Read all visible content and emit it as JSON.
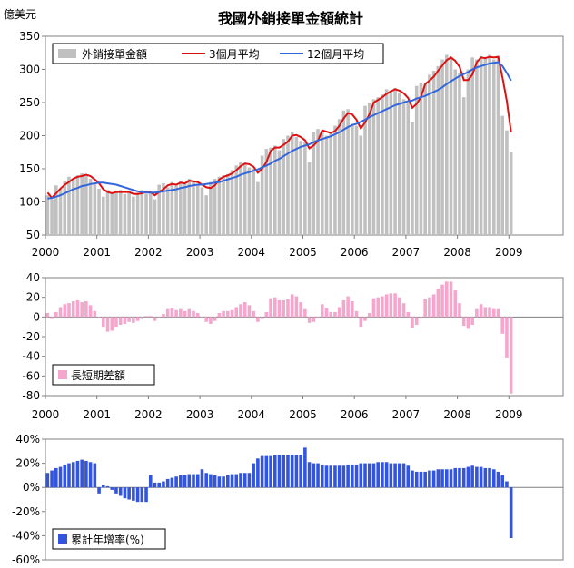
{
  "chart_data": [
    {
      "type": "bar",
      "title": "我國外銷接單金額統計",
      "unit_label": "億美元",
      "ylim": [
        50,
        350
      ],
      "yticks": [
        50,
        100,
        150,
        200,
        250,
        300,
        350
      ],
      "xticks": [
        "2000",
        "2001",
        "2002",
        "2003",
        "2004",
        "2005",
        "2006",
        "2007",
        "2008",
        "2009"
      ],
      "x_start": 2000,
      "colors": {
        "bars": "#c0c0c0",
        "ma3": "#dd1111",
        "ma12": "#3366dd"
      },
      "legend": [
        "外銷接單金額",
        "3個月平均",
        "12個月平均"
      ],
      "series": [
        {
          "name": "外銷接單金額",
          "type": "bar",
          "values": [
            110,
            104,
            125,
            120,
            132,
            138,
            135,
            140,
            143,
            140,
            135,
            128,
            120,
            108,
            118,
            112,
            115,
            118,
            112,
            115,
            108,
            114,
            118,
            112,
            115,
            104,
            126,
            128,
            122,
            130,
            125,
            132,
            128,
            135,
            130,
            125,
            122,
            110,
            130,
            135,
            138,
            140,
            142,
            148,
            155,
            160,
            158,
            152,
            150,
            130,
            170,
            180,
            182,
            185,
            178,
            195,
            200,
            205,
            198,
            192,
            190,
            160,
            205,
            210,
            208,
            200,
            205,
            215,
            225,
            238,
            240,
            218,
            215,
            200,
            245,
            250,
            255,
            258,
            262,
            270,
            268,
            272,
            265,
            255,
            250,
            220,
            275,
            280,
            278,
            292,
            298,
            305,
            315,
            322,
            318,
            300,
            295,
            258,
            300,
            318,
            315,
            320,
            316,
            322,
            315,
            320,
            230,
            208,
            176
          ]
        },
        {
          "name": "3個月平均",
          "type": "line",
          "values": [
            114,
            106,
            113,
            120,
            126,
            130,
            135,
            138,
            139,
            141,
            139,
            134,
            128,
            119,
            115,
            113,
            115,
            115,
            115,
            115,
            112,
            112,
            113,
            115,
            115,
            110,
            115,
            119,
            125,
            127,
            126,
            129,
            128,
            132,
            131,
            130,
            126,
            122,
            121,
            125,
            134,
            138,
            140,
            143,
            148,
            154,
            158,
            157,
            153,
            144,
            150,
            160,
            177,
            182,
            182,
            186,
            191,
            200,
            201,
            198,
            193,
            181,
            185,
            192,
            208,
            206,
            204,
            207,
            215,
            226,
            234,
            232,
            224,
            211,
            220,
            232,
            250,
            254,
            258,
            263,
            267,
            270,
            268,
            264,
            257,
            242,
            248,
            258,
            278,
            283,
            289,
            298,
            306,
            314,
            318,
            313,
            304,
            284,
            284,
            292,
            311,
            318,
            317,
            319,
            318,
            319,
            288,
            253,
            205
          ]
        },
        {
          "name": "12個月平均",
          "type": "line",
          "values": [
            105,
            106,
            108,
            110,
            113,
            116,
            119,
            121,
            124,
            125,
            127,
            128,
            129,
            129,
            128,
            127,
            126,
            124,
            122,
            120,
            118,
            116,
            115,
            114,
            114,
            114,
            115,
            116,
            117,
            118,
            119,
            121,
            122,
            124,
            125,
            126,
            126,
            127,
            128,
            129,
            130,
            132,
            134,
            136,
            138,
            141,
            143,
            145,
            147,
            149,
            152,
            155,
            158,
            162,
            165,
            169,
            173,
            177,
            180,
            183,
            185,
            187,
            190,
            193,
            195,
            197,
            199,
            202,
            205,
            209,
            213,
            216,
            218,
            221,
            224,
            228,
            231,
            234,
            237,
            240,
            243,
            246,
            248,
            250,
            252,
            253,
            256,
            258,
            260,
            263,
            266,
            269,
            273,
            278,
            282,
            286,
            290,
            293,
            296,
            300,
            303,
            305,
            307,
            309,
            310,
            311,
            305,
            295,
            283
          ]
        }
      ]
    },
    {
      "type": "bar",
      "ylim": [
        -80,
        40
      ],
      "yticks": [
        -80,
        -60,
        -40,
        -20,
        0,
        20,
        40
      ],
      "xticks": [
        "2000",
        "2001",
        "2002",
        "2003",
        "2004",
        "2005",
        "2006",
        "2007",
        "2008",
        "2009"
      ],
      "x_start": 2000,
      "colors": {
        "bars": "#f4a6cc"
      },
      "legend": [
        "長短期差額"
      ],
      "series": [
        {
          "name": "長短期差額",
          "type": "bar",
          "values": [
            4,
            -2,
            5,
            10,
            13,
            14,
            16,
            17,
            15,
            16,
            12,
            6,
            -1,
            -10,
            -15,
            -14,
            -10,
            -8,
            -7,
            -5,
            -6,
            -4,
            -2,
            1,
            1,
            -4,
            0,
            3,
            8,
            9,
            7,
            8,
            6,
            8,
            6,
            4,
            0,
            -5,
            -7,
            -4,
            4,
            6,
            6,
            7,
            10,
            13,
            15,
            12,
            6,
            -5,
            -2,
            5,
            19,
            20,
            17,
            17,
            18,
            23,
            21,
            15,
            8,
            -6,
            -5,
            -1,
            13,
            9,
            5,
            5,
            10,
            17,
            21,
            16,
            6,
            -10,
            -4,
            4,
            19,
            20,
            21,
            23,
            24,
            24,
            20,
            14,
            5,
            -11,
            -8,
            0,
            18,
            20,
            23,
            29,
            33,
            36,
            36,
            27,
            14,
            -9,
            -12,
            -8,
            8,
            13,
            10,
            10,
            8,
            8,
            -17,
            -42,
            -78
          ]
        }
      ]
    },
    {
      "type": "bar",
      "ylim": [
        -60,
        40
      ],
      "yticks": [
        "40%",
        "20%",
        "0%",
        "-20%",
        "-40%",
        "-60%"
      ],
      "ytick_values": [
        40,
        20,
        0,
        -20,
        -40,
        -60
      ],
      "xticks": [],
      "x_start": 2000,
      "colors": {
        "bars": "#3355dd"
      },
      "legend": [
        "累計年增率(%)"
      ],
      "series": [
        {
          "name": "累計年增率(%)",
          "type": "bar",
          "values": [
            12,
            14,
            16,
            17,
            19,
            20,
            21,
            22,
            23,
            22,
            21,
            20,
            -5,
            2,
            1,
            -2,
            -5,
            -7,
            -9,
            -10,
            -11,
            -12,
            -12,
            -12,
            10,
            4,
            4,
            5,
            7,
            8,
            9,
            10,
            10,
            11,
            11,
            11,
            15,
            12,
            11,
            10,
            9,
            9,
            10,
            11,
            11,
            12,
            12,
            12,
            20,
            24,
            26,
            26,
            26,
            27,
            27,
            27,
            27,
            27,
            27,
            27,
            33,
            21,
            20,
            20,
            19,
            18,
            18,
            18,
            18,
            18,
            19,
            19,
            19,
            20,
            20,
            20,
            20,
            21,
            21,
            21,
            20,
            20,
            20,
            20,
            18,
            14,
            13,
            13,
            13,
            14,
            14,
            15,
            15,
            15,
            15,
            16,
            16,
            16,
            17,
            18,
            17,
            17,
            16,
            16,
            15,
            13,
            10,
            5,
            -42
          ]
        }
      ]
    }
  ]
}
